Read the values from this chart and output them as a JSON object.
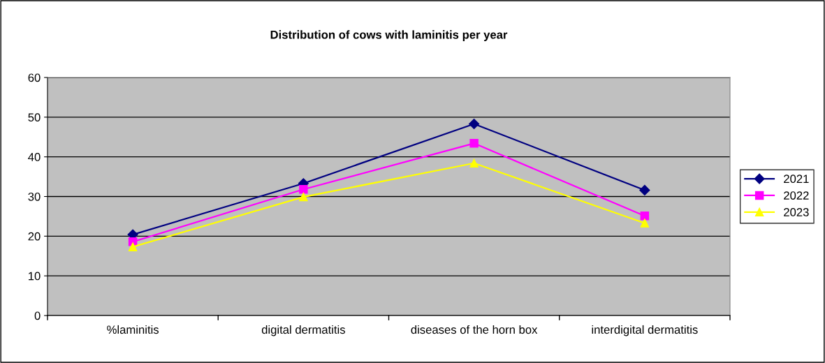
{
  "chart_data": {
    "type": "line",
    "title": "Distribution of cows with laminitis per year",
    "categories": [
      "%laminitis",
      "digital dermatitis",
      "diseases of the horn box",
      "interdigital dermatitis"
    ],
    "series": [
      {
        "name": "2021",
        "color": "#000080",
        "marker": "diamond",
        "values": [
          20.4,
          33.3,
          48.3,
          31.6
        ]
      },
      {
        "name": "2022",
        "color": "#ff00ff",
        "marker": "square",
        "values": [
          18.6,
          31.8,
          43.4,
          25.1
        ]
      },
      {
        "name": "2023",
        "color": "#ffff00",
        "marker": "triangle",
        "values": [
          17.3,
          29.9,
          38.4,
          23.3
        ]
      }
    ],
    "ylim": [
      0,
      60
    ],
    "yticks": [
      0,
      10,
      20,
      30,
      40,
      50,
      60
    ],
    "grid": "y",
    "legend": "right",
    "line_style": "solid"
  }
}
